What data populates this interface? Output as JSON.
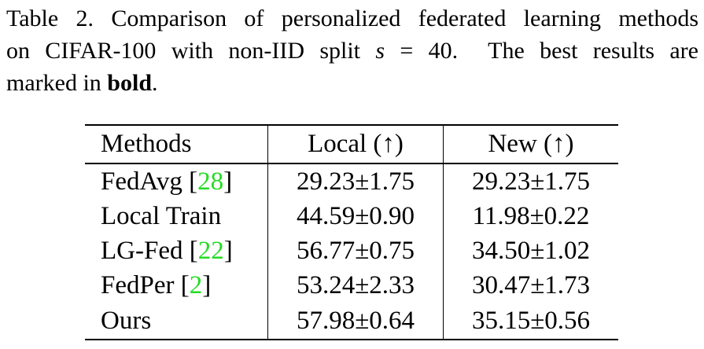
{
  "caption": {
    "line1": "Table 2. Comparison of personalized federated learning methods",
    "line2_prefix": "on CIFAR-100 with non-IID split",
    "line2_var": "s",
    "line2_eq": "=",
    "line2_val": "40.",
    "line2_suffix": "The best results are",
    "line3_prefix": "marked in",
    "line3_bold": "bold",
    "line3_suffix": "."
  },
  "table": {
    "headers": {
      "method": "Methods",
      "local": "Local (↑)",
      "new": "New (↑)"
    },
    "rows": [
      {
        "method": "FedAvg",
        "cite_open": " [",
        "cite": "28",
        "cite_close": "]",
        "local": "29.23±1.75",
        "new": "29.23±1.75"
      },
      {
        "method": "Local Train",
        "cite_open": "",
        "cite": "",
        "cite_close": "",
        "local": "44.59±0.90",
        "new": "11.98±0.22"
      },
      {
        "method": "LG-Fed",
        "cite_open": " [",
        "cite": "22",
        "cite_close": "]",
        "local": "56.77±0.75",
        "new": "34.50±1.02"
      },
      {
        "method": "FedPer",
        "cite_open": " [",
        "cite": "2",
        "cite_close": "]",
        "local": "53.24±2.33",
        "new": "30.47±1.73"
      },
      {
        "method": "Ours",
        "cite_open": "",
        "cite": "",
        "cite_close": "",
        "local": "57.98±0.64",
        "new": "35.15±0.56",
        "best": true
      }
    ]
  },
  "colors": {
    "citation": "#22dd22",
    "text": "#000000"
  }
}
